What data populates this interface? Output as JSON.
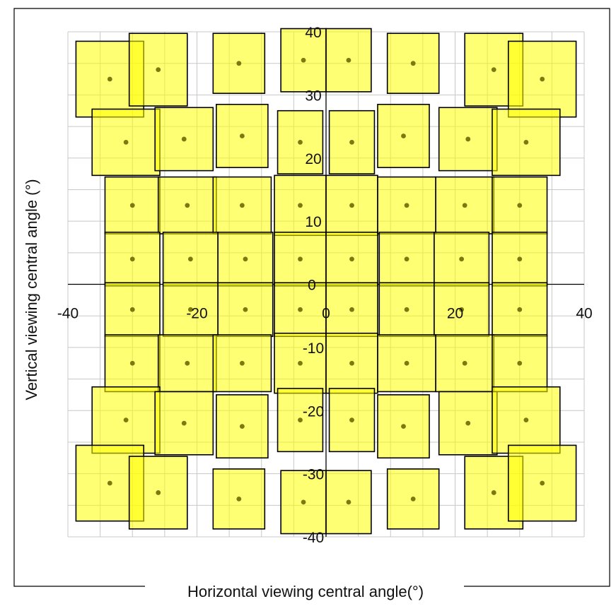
{
  "chart_data": {
    "type": "scatter",
    "title": "",
    "xlabel": "Horizontal viewing central angle(°)",
    "ylabel": "Vertical viewing central angle (°)",
    "xlim": [
      -40,
      40
    ],
    "ylim": [
      -40,
      40
    ],
    "x_ticks": [
      -40,
      -20,
      0,
      20,
      40
    ],
    "y_ticks": [
      -40,
      -30,
      -20,
      -10,
      0,
      10,
      20,
      30,
      40
    ],
    "grid": true,
    "grid_step": 5,
    "legend": "none",
    "colors": {
      "fill": "#ffff00",
      "fill_opacity": 0.55,
      "edge": "#000000",
      "center": "#7a7a10",
      "grid": "#c8c8c8",
      "axis": "#000000",
      "frame": "#000000"
    },
    "columns_x": [
      -34,
      -25,
      -16,
      -6.5,
      3.5,
      12.5,
      22,
      32
    ],
    "rows": [
      {
        "y": 32.5,
        "x": [
          -33.5,
          -26,
          -13.5,
          -3.5,
          3.5,
          13.5,
          26,
          33.5
        ],
        "w": [
          10.5,
          9.0,
          8.0,
          7.0,
          7.0,
          8.0,
          9.0,
          10.5
        ],
        "h": [
          12.0,
          11.5,
          9.5,
          10.0,
          10.0,
          9.5,
          11.5,
          12.0
        ]
      },
      {
        "y": 22.5,
        "x": [
          -31.0,
          -22.0,
          -13.0,
          -4.0,
          4.0,
          12.0,
          22.0,
          31.0
        ],
        "w": [
          10.5,
          9.0,
          8.0,
          7.0,
          7.0,
          8.0,
          9.0,
          10.5
        ],
        "h": [
          10.5,
          10.0,
          10.0,
          10.0,
          10.0,
          10.0,
          10.0,
          10.5
        ]
      },
      {
        "y": 12.5,
        "x": [
          -30.0,
          -21.5,
          -13.0,
          -4.0,
          4.0,
          12.5,
          21.5,
          30.0
        ],
        "w": [
          8.5,
          9.0,
          9.0,
          8.0,
          8.0,
          9.0,
          9.0,
          8.5
        ],
        "h": [
          9.0,
          9.0,
          9.0,
          9.5,
          9.5,
          9.0,
          9.0,
          9.0
        ]
      },
      {
        "y": 4.0,
        "x": [
          -30.0,
          -21.0,
          -12.5,
          -4.0,
          4.0,
          12.5,
          21.0,
          30.0
        ],
        "w": [
          8.5,
          8.5,
          8.5,
          8.0,
          8.0,
          8.5,
          8.5,
          8.5
        ],
        "h": [
          8.5,
          8.5,
          8.5,
          8.5,
          8.5,
          8.5,
          8.5,
          8.5
        ]
      },
      {
        "y": -4.0,
        "x": [
          -30.0,
          -21.0,
          -12.5,
          -4.0,
          4.0,
          12.5,
          21.0,
          30.0
        ],
        "w": [
          8.5,
          8.5,
          8.5,
          8.0,
          8.0,
          8.5,
          8.5,
          8.5
        ],
        "h": [
          8.5,
          8.5,
          8.5,
          8.5,
          8.5,
          8.5,
          8.5,
          8.5
        ]
      },
      {
        "y": -12.5,
        "x": [
          -30.0,
          -21.5,
          -13.0,
          -4.0,
          4.0,
          12.5,
          21.5,
          30.0
        ],
        "w": [
          8.5,
          9.0,
          9.0,
          8.0,
          8.0,
          9.0,
          9.0,
          8.5
        ],
        "h": [
          9.0,
          9.0,
          9.0,
          9.5,
          9.5,
          9.0,
          9.0,
          9.0
        ]
      },
      {
        "y": -21.5,
        "x": [
          -31.0,
          -22.0,
          -13.0,
          -4.0,
          4.0,
          12.0,
          22.0,
          31.0
        ],
        "w": [
          10.5,
          9.0,
          8.0,
          7.0,
          7.0,
          8.0,
          9.0,
          10.5
        ],
        "h": [
          10.5,
          10.0,
          10.0,
          10.0,
          10.0,
          10.0,
          10.0,
          10.5
        ]
      },
      {
        "y": -31.5,
        "x": [
          -33.5,
          -26,
          -13.5,
          -3.5,
          3.5,
          13.5,
          26,
          33.5
        ],
        "w": [
          10.5,
          9.0,
          8.0,
          7.0,
          7.0,
          8.0,
          9.0,
          10.5
        ],
        "h": [
          12.0,
          11.5,
          9.5,
          10.0,
          10.0,
          9.5,
          11.5,
          12.0
        ]
      }
    ],
    "row_y_offsets": [
      [
        0.0,
        1.5,
        2.5,
        3.0,
        3.0,
        2.5,
        1.5,
        0.0
      ],
      [
        0.0,
        0.5,
        1.0,
        0.0,
        0.0,
        1.0,
        0.5,
        0.0
      ],
      [
        0.0,
        0.0,
        0.0,
        0.0,
        0.0,
        0.0,
        0.0,
        0.0
      ],
      [
        0.0,
        0.0,
        0.0,
        0.0,
        0.0,
        0.0,
        0.0,
        0.0
      ],
      [
        0.0,
        0.0,
        0.0,
        0.0,
        0.0,
        0.0,
        0.0,
        0.0
      ],
      [
        0.0,
        0.0,
        0.0,
        0.0,
        0.0,
        0.0,
        0.0,
        0.0
      ],
      [
        0.0,
        -0.5,
        -1.0,
        0.0,
        0.0,
        -1.0,
        -0.5,
        0.0
      ],
      [
        0.0,
        -1.5,
        -2.5,
        -3.0,
        -3.0,
        -2.5,
        -1.5,
        0.0
      ]
    ]
  }
}
